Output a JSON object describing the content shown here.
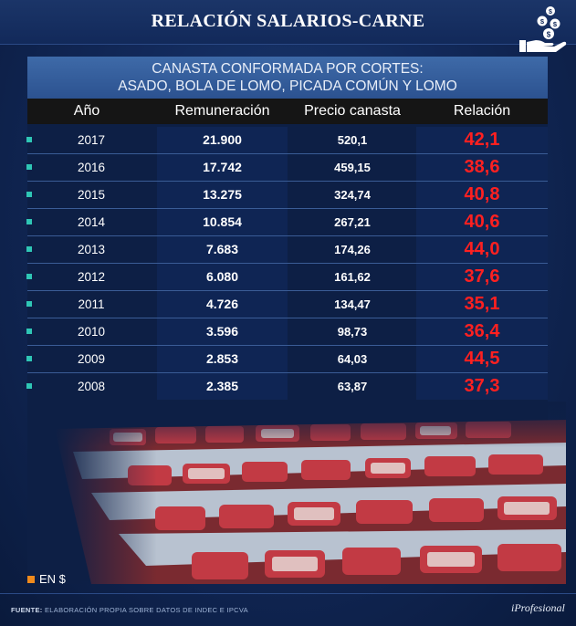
{
  "title": "RELACIÓN SALARIOS-CARNE",
  "subtitle": {
    "line1": "CANASTA CONFORMADA POR CORTES:",
    "line2": "ASADO, BOLA DE LOMO, PICADA COMÚN Y LOMO"
  },
  "icon": "money-hand-icon",
  "colors": {
    "relation": "#ff2020",
    "bullet": "#2fc6b5",
    "legend": "#f08a1c"
  },
  "chart_data": {
    "type": "table",
    "title": "RELACIÓN SALARIOS-CARNE",
    "subtitle": "CANASTA CONFORMADA POR CORTES: ASADO, BOLA DE LOMO, PICADA COMÚN Y LOMO",
    "columns": [
      "Año",
      "Remuneración",
      "Precio canasta",
      "Relación"
    ],
    "rows": [
      [
        "2017",
        "21.900",
        "520,1",
        "42,1"
      ],
      [
        "2016",
        "17.742",
        "459,15",
        "38,6"
      ],
      [
        "2015",
        "13.275",
        "324,74",
        "40,8"
      ],
      [
        "2014",
        "10.854",
        "267,21",
        "40,6"
      ],
      [
        "2013",
        "7.683",
        "174,26",
        "44,0"
      ],
      [
        "2012",
        "6.080",
        "161,62",
        "37,6"
      ],
      [
        "2011",
        "4.726",
        "134,47",
        "35,1"
      ],
      [
        "2010",
        "3.596",
        "98,73",
        "36,4"
      ],
      [
        "2009",
        "2.853",
        "64,03",
        "44,5"
      ],
      [
        "2008",
        "2.385",
        "63,87",
        "37,3"
      ]
    ]
  },
  "legend": "EN $",
  "footer": {
    "label": "FUENTE:",
    "text": "ELABORACIÓN PROPIA SOBRE DATOS DE INDEC E IPCVA"
  },
  "brand": "iProfesional"
}
